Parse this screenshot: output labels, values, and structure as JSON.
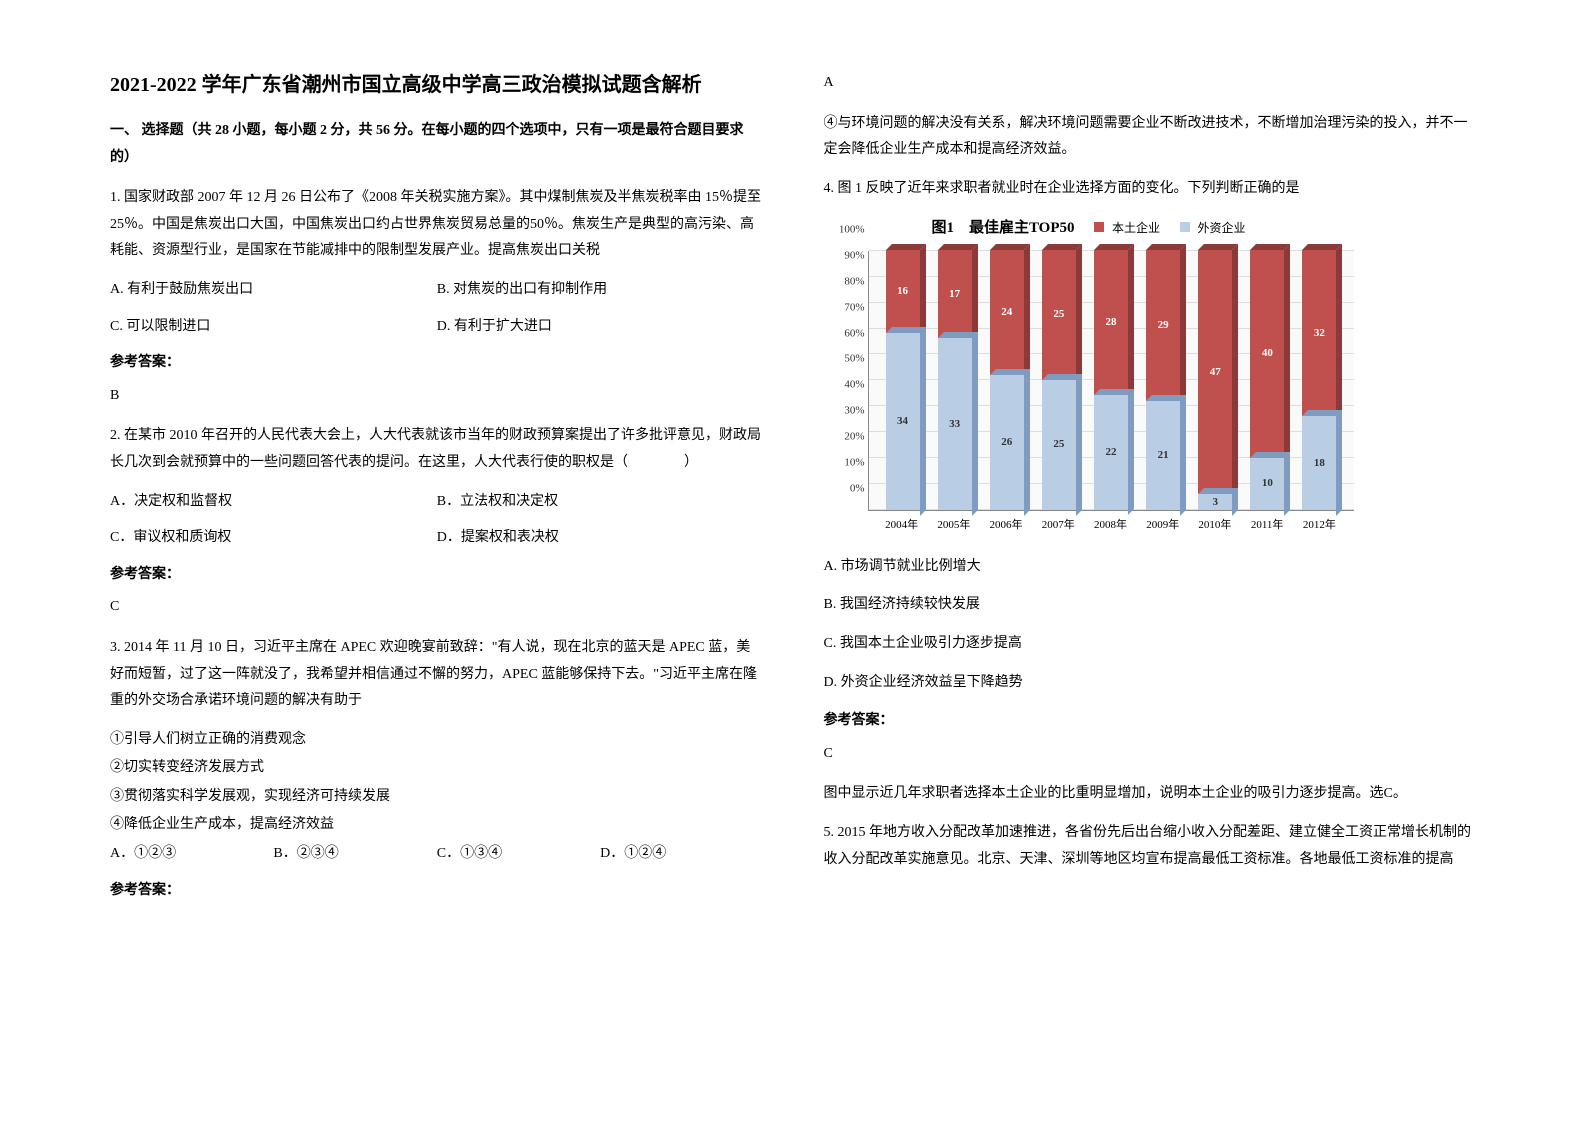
{
  "title": "2021-2022 学年广东省潮州市国立高级中学高三政治模拟试题含解析",
  "section1": "一、 选择题（共 28 小题，每小题 2 分，共 56 分。在每小题的四个选项中，只有一项是最符合题目要求的）",
  "q1": {
    "body": "1. 国家财政部 2007 年 12 月 26 日公布了《2008 年关税实施方案》。其中煤制焦炭及半焦炭税率由 15％提至 25％。中国是焦炭出口大国，中国焦炭出口约占世界焦炭贸易总量的50％。焦炭生产是典型的高污染、高耗能、资源型行业，是国家在节能减排中的限制型发展产业。提高焦炭出口关税",
    "optA": "A. 有利于鼓励焦炭出口",
    "optB": "B. 对焦炭的出口有抑制作用",
    "optC": "C. 可以限制进口",
    "optD": "D. 有利于扩大进口",
    "ansLabel": "参考答案：",
    "ansVal": "B"
  },
  "q2": {
    "body": "2. 在某市 2010 年召开的人民代表大会上，人大代表就该市当年的财政预算案提出了许多批评意见，财政局长几次到会就预算中的一些问题回答代表的提问。在这里，人大代表行使的职权是（　　　　）",
    "optA": "A．决定权和监督权",
    "optB": "B．立法权和决定权",
    "optC": "C．审议权和质询权",
    "optD": "D．提案权和表决权",
    "ansLabel": "参考答案：",
    "ansVal": "C"
  },
  "q3": {
    "body": "3. 2014 年 11 月 10 日，习近平主席在 APEC 欢迎晚宴前致辞：\"有人说，现在北京的蓝天是 APEC 蓝，美好而短暂，过了这一阵就没了，我希望并相信通过不懈的努力，APEC 蓝能够保持下去。\"习近平主席在隆重的外交场合承诺环境问题的解决有助于",
    "s1": "①引导人们树立正确的消费观念",
    "s2": "②切实转变经济发展方式",
    "s3": "③贯彻落实科学发展观，实现经济可持续发展",
    "s4": "④降低企业生产成本，提高经济效益",
    "optA": "A．①②③",
    "optB": "B．②③④",
    "optC": "C．①③④",
    "optD": "D．①②④",
    "ansLabel": "参考答案：",
    "ansVal": "A",
    "expl": "④与环境问题的解决没有关系，解决环境问题需要企业不断改进技术，不断增加治理污染的投入，并不一定会降低企业生产成本和提高经济效益。"
  },
  "q4": {
    "stem": "4. 图 1 反映了近年来求职者就业时在企业选择方面的变化。下列判断正确的是",
    "optA": "A. 市场调节就业比例增大",
    "optB": "B. 我国经济持续较快发展",
    "optC": "C. 我国本土企业吸引力逐步提高",
    "optD": "D. 外资企业经济效益呈下降趋势",
    "ansLabel": "参考答案：",
    "ansVal": "C",
    "expl": "图中显示近几年求职者选择本土企业的比重明显增加，说明本土企业的吸引力逐步提高。选C。"
  },
  "q5": {
    "body": "5. 2015 年地方收入分配改革加速推进，各省份先后出台缩小收入分配差距、建立健全工资正常增长机制的收入分配改革实施意见。北京、天津、深圳等地区均宣布提高最低工资标准。各地最低工资标准的提高"
  },
  "chart": {
    "title": "图1　最佳雇主TOP50",
    "legend1": "本土企业",
    "legend2": "外资企业",
    "color_domestic": "#c0504d",
    "color_domestic_dark": "#8a3a38",
    "color_foreign": "#b9cde5",
    "color_foreign_dark": "#7f9bc0",
    "grid_color": "#dddddd",
    "axis_color": "#888888",
    "years": [
      "2004年",
      "2005年",
      "2006年",
      "2007年",
      "2008年",
      "2009年",
      "2010年",
      "2011年",
      "2012年"
    ],
    "foreign": [
      34,
      33,
      26,
      25,
      22,
      21,
      3,
      10,
      18
    ],
    "domestic": [
      16,
      17,
      24,
      25,
      28,
      29,
      47,
      40,
      32
    ],
    "yticks": [
      "0%",
      "10%",
      "20%",
      "30%",
      "40%",
      "50%",
      "60%",
      "70%",
      "80%",
      "90%",
      "100%"
    ]
  }
}
